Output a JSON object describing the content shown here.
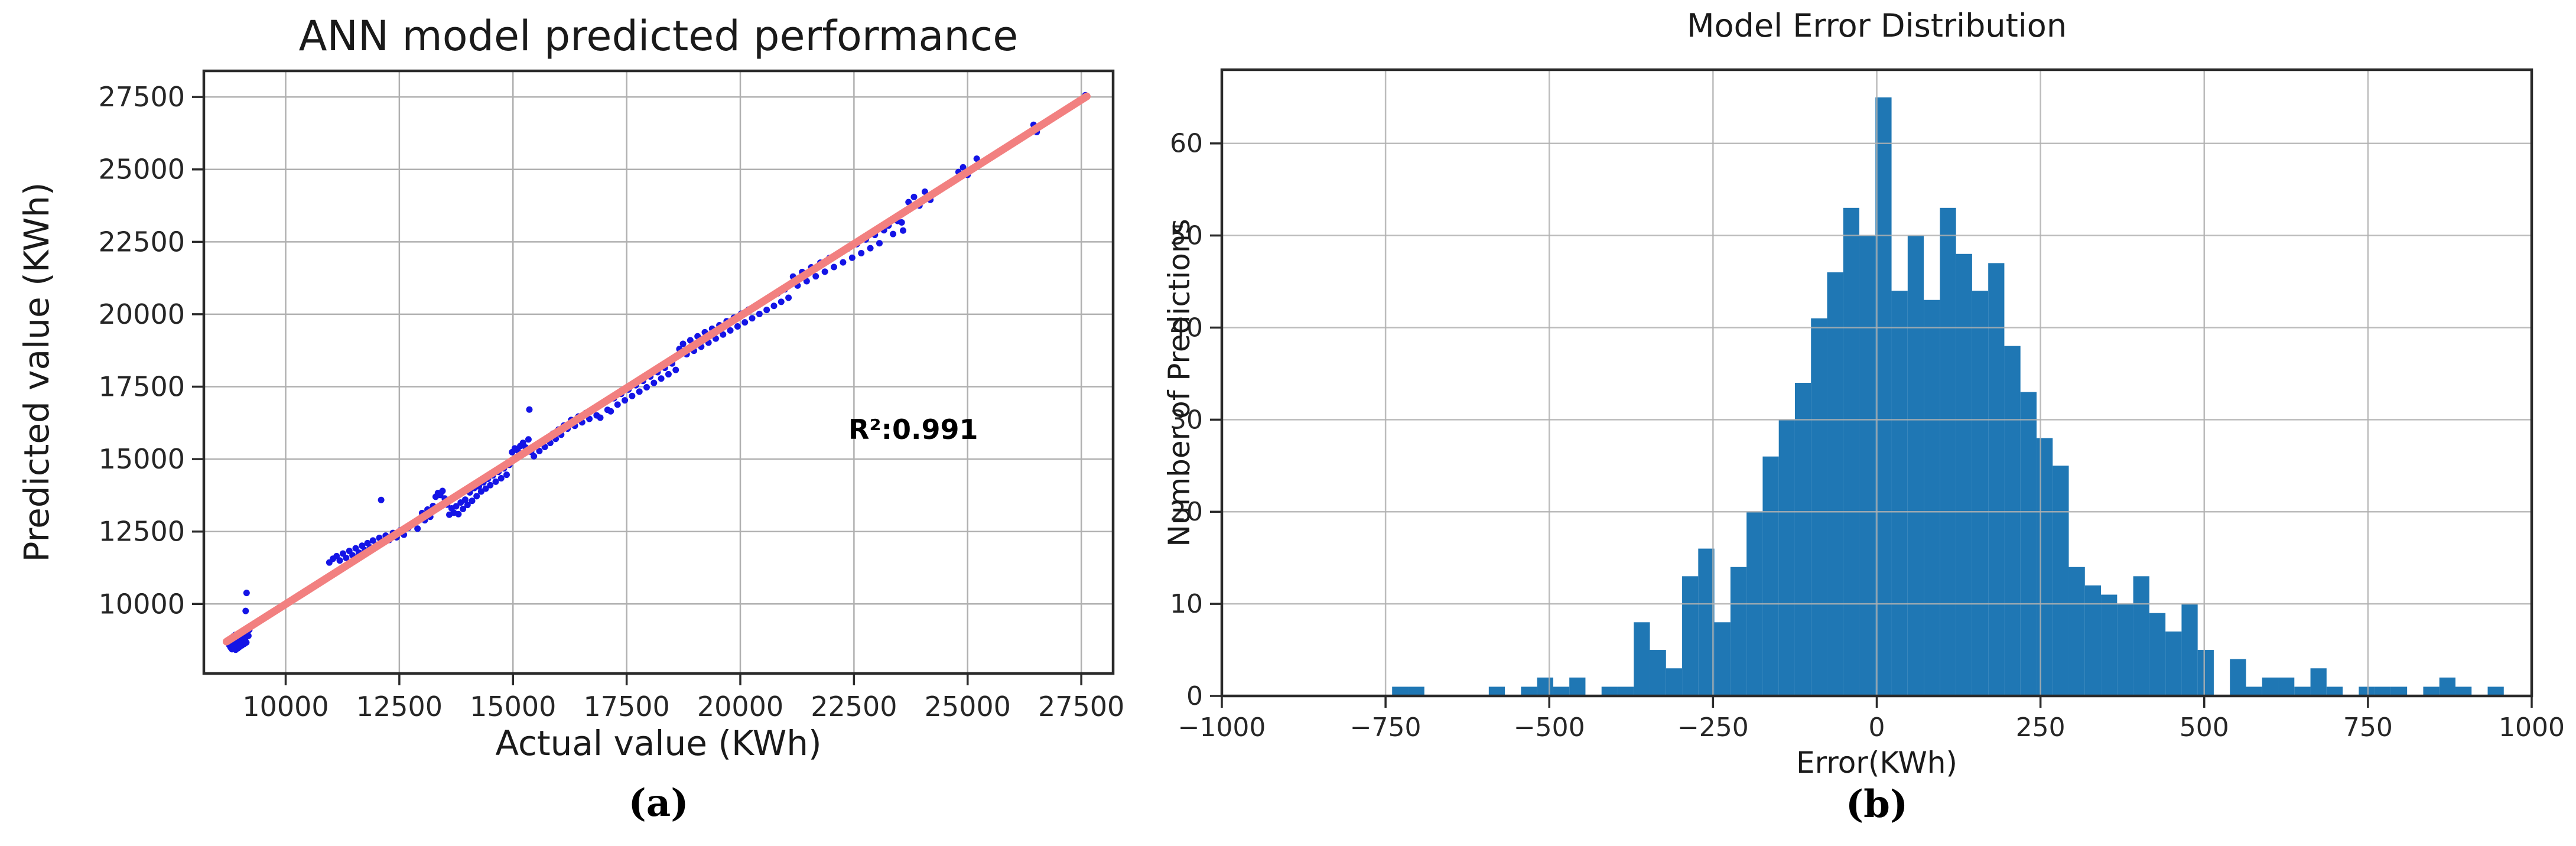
{
  "page": {
    "background": "#ffffff"
  },
  "captions": {
    "a": "(a)",
    "b": "(b)"
  },
  "chart_data": [
    {
      "type": "scatter",
      "panel": "a",
      "title": "ANN model predicted performance",
      "xlabel": "Actual value (KWh)",
      "ylabel": "Predicted value (KWh)",
      "annotation": "R²:0.991",
      "xlim": [
        8200,
        28200
      ],
      "ylim": [
        7600,
        28400
      ],
      "xticks": [
        10000,
        12500,
        15000,
        17500,
        20000,
        22500,
        25000,
        27500
      ],
      "xtick_labels": [
        "10000",
        "12500",
        "15000",
        "17500",
        "20000",
        "22500",
        "25000",
        "27500"
      ],
      "yticks": [
        10000,
        12500,
        15000,
        17500,
        20000,
        22500,
        25000,
        27500
      ],
      "ytick_labels": [
        "10000",
        "12500",
        "15000",
        "17500",
        "20000",
        "22500",
        "25000",
        "27500"
      ],
      "grid": true,
      "legend_position": "none",
      "point_color": "#1414e6",
      "line_color": "#f28080",
      "grid_color": "#b0b0b0",
      "fit_line": {
        "x": [
          8700,
          27620
        ],
        "y": [
          8700,
          27520
        ]
      },
      "points": [
        [
          8760,
          8580
        ],
        [
          8775,
          8700
        ],
        [
          8790,
          8500
        ],
        [
          8800,
          8810
        ],
        [
          8810,
          8620
        ],
        [
          8820,
          8440
        ],
        [
          8830,
          8750
        ],
        [
          8840,
          8560
        ],
        [
          8850,
          8880
        ],
        [
          8855,
          8680
        ],
        [
          8865,
          8490
        ],
        [
          8875,
          8800
        ],
        [
          8885,
          8600
        ],
        [
          8890,
          8930
        ],
        [
          8900,
          8420
        ],
        [
          8905,
          8730
        ],
        [
          8915,
          8540
        ],
        [
          8925,
          8860
        ],
        [
          8935,
          8650
        ],
        [
          8945,
          8470
        ],
        [
          8950,
          8780
        ],
        [
          8960,
          8590
        ],
        [
          8970,
          8900
        ],
        [
          8980,
          8710
        ],
        [
          8985,
          8520
        ],
        [
          8995,
          8830
        ],
        [
          9005,
          8640
        ],
        [
          9015,
          8950
        ],
        [
          9025,
          8760
        ],
        [
          9035,
          8570
        ],
        [
          9045,
          8870
        ],
        [
          9055,
          8690
        ],
        [
          9065,
          9000
        ],
        [
          9075,
          8810
        ],
        [
          9085,
          8620
        ],
        [
          9095,
          8920
        ],
        [
          9105,
          8740
        ],
        [
          9115,
          9040
        ],
        [
          9125,
          8850
        ],
        [
          9135,
          8670
        ],
        [
          9150,
          8970
        ],
        [
          9165,
          9090
        ],
        [
          9180,
          8900
        ],
        [
          9200,
          9110
        ],
        [
          9230,
          9240
        ],
        [
          9120,
          9760
        ],
        [
          9140,
          10380
        ],
        [
          10960,
          11430
        ],
        [
          11040,
          11560
        ],
        [
          11120,
          11650
        ],
        [
          11190,
          11500
        ],
        [
          11260,
          11740
        ],
        [
          11330,
          11590
        ],
        [
          11400,
          11830
        ],
        [
          11470,
          11680
        ],
        [
          11540,
          11920
        ],
        [
          11610,
          11770
        ],
        [
          11680,
          12010
        ],
        [
          11740,
          11860
        ],
        [
          11800,
          12100
        ],
        [
          11860,
          11950
        ],
        [
          11920,
          12190
        ],
        [
          11990,
          12040
        ],
        [
          12060,
          12280
        ],
        [
          12130,
          12120
        ],
        [
          12200,
          12360
        ],
        [
          12100,
          13590
        ],
        [
          12280,
          12210
        ],
        [
          12360,
          12450
        ],
        [
          12440,
          12300
        ],
        [
          12520,
          12540
        ],
        [
          12600,
          12390
        ],
        [
          12700,
          12630
        ],
        [
          12800,
          12760
        ],
        [
          12900,
          12600
        ],
        [
          13000,
          13140
        ],
        [
          13060,
          12890
        ],
        [
          13120,
          13260
        ],
        [
          13180,
          13010
        ],
        [
          13240,
          13380
        ],
        [
          13300,
          13700
        ],
        [
          13350,
          13830
        ],
        [
          13400,
          13760
        ],
        [
          13450,
          13900
        ],
        [
          13500,
          13640
        ],
        [
          13550,
          13430
        ],
        [
          13600,
          13080
        ],
        [
          13650,
          13300
        ],
        [
          13700,
          13150
        ],
        [
          13750,
          13370
        ],
        [
          13800,
          13100
        ],
        [
          13850,
          13500
        ],
        [
          13900,
          13280
        ],
        [
          13950,
          13600
        ],
        [
          14000,
          13420
        ],
        [
          14050,
          13850
        ],
        [
          14100,
          13560
        ],
        [
          14150,
          14000
        ],
        [
          14200,
          13720
        ],
        [
          14250,
          14060
        ],
        [
          14300,
          13880
        ],
        [
          14350,
          14200
        ],
        [
          14400,
          13980
        ],
        [
          14450,
          14320
        ],
        [
          14500,
          14100
        ],
        [
          14560,
          14440
        ],
        [
          14620,
          14220
        ],
        [
          14680,
          14560
        ],
        [
          14740,
          14340
        ],
        [
          14800,
          14680
        ],
        [
          14860,
          14460
        ],
        [
          14920,
          14800
        ],
        [
          14980,
          15240
        ],
        [
          15040,
          15370
        ],
        [
          15100,
          15300
        ],
        [
          15160,
          15450
        ],
        [
          15220,
          15560
        ],
        [
          15280,
          15400
        ],
        [
          15340,
          15680
        ],
        [
          15360,
          16710
        ],
        [
          15400,
          15250
        ],
        [
          15460,
          15100
        ],
        [
          15520,
          15470
        ],
        [
          15580,
          15280
        ],
        [
          15640,
          15600
        ],
        [
          15700,
          15420
        ],
        [
          15760,
          15740
        ],
        [
          15820,
          15560
        ],
        [
          15880,
          15880
        ],
        [
          15940,
          15700
        ],
        [
          16000,
          16020
        ],
        [
          16060,
          15840
        ],
        [
          16120,
          16160
        ],
        [
          16200,
          16050
        ],
        [
          16280,
          16350
        ],
        [
          16360,
          16150
        ],
        [
          16440,
          16470
        ],
        [
          16520,
          16270
        ],
        [
          16600,
          16590
        ],
        [
          16680,
          16390
        ],
        [
          16760,
          16710
        ],
        [
          16840,
          16510
        ],
        [
          16920,
          16430
        ],
        [
          17000,
          16950
        ],
        [
          17080,
          16700
        ],
        [
          17150,
          16650
        ],
        [
          17220,
          17100
        ],
        [
          17300,
          16880
        ],
        [
          17380,
          17250
        ],
        [
          17460,
          17030
        ],
        [
          17540,
          17400
        ],
        [
          17620,
          17180
        ],
        [
          17700,
          17550
        ],
        [
          17780,
          17330
        ],
        [
          17860,
          17700
        ],
        [
          17940,
          17480
        ],
        [
          18020,
          17850
        ],
        [
          18100,
          17630
        ],
        [
          18180,
          18000
        ],
        [
          18260,
          17780
        ],
        [
          18340,
          18150
        ],
        [
          18420,
          17930
        ],
        [
          18500,
          18300
        ],
        [
          18580,
          18080
        ],
        [
          18660,
          18800
        ],
        [
          18740,
          18980
        ],
        [
          18820,
          18620
        ],
        [
          18900,
          19100
        ],
        [
          18980,
          18740
        ],
        [
          19060,
          19240
        ],
        [
          19140,
          18880
        ],
        [
          19220,
          19380
        ],
        [
          19300,
          19020
        ],
        [
          19380,
          19500
        ],
        [
          19460,
          19160
        ],
        [
          19540,
          19620
        ],
        [
          19620,
          19300
        ],
        [
          19700,
          19760
        ],
        [
          19780,
          19440
        ],
        [
          19860,
          19880
        ],
        [
          19940,
          19580
        ],
        [
          20020,
          20020
        ],
        [
          20100,
          19720
        ],
        [
          20180,
          20160
        ],
        [
          20260,
          19860
        ],
        [
          20340,
          20300
        ],
        [
          20420,
          20010
        ],
        [
          20500,
          20440
        ],
        [
          20580,
          20150
        ],
        [
          20660,
          20580
        ],
        [
          20740,
          20290
        ],
        [
          20820,
          20720
        ],
        [
          20900,
          20430
        ],
        [
          20980,
          20860
        ],
        [
          21060,
          20570
        ],
        [
          21160,
          21300
        ],
        [
          21260,
          20990
        ],
        [
          21360,
          21460
        ],
        [
          21460,
          21140
        ],
        [
          21560,
          21620
        ],
        [
          21660,
          21310
        ],
        [
          21760,
          21780
        ],
        [
          21860,
          21470
        ],
        [
          21960,
          21940
        ],
        [
          22060,
          21630
        ],
        [
          22160,
          22100
        ],
        [
          22260,
          21790
        ],
        [
          22360,
          22260
        ],
        [
          22460,
          21950
        ],
        [
          22560,
          22420
        ],
        [
          22660,
          22110
        ],
        [
          22760,
          22580
        ],
        [
          22860,
          22280
        ],
        [
          22960,
          22740
        ],
        [
          23060,
          22450
        ],
        [
          23160,
          22900
        ],
        [
          23260,
          23060
        ],
        [
          23360,
          22770
        ],
        [
          23460,
          23220
        ],
        [
          23550,
          23170
        ],
        [
          23580,
          22890
        ],
        [
          23700,
          23870
        ],
        [
          23820,
          24050
        ],
        [
          23940,
          23750
        ],
        [
          24060,
          24230
        ],
        [
          24180,
          23950
        ],
        [
          24800,
          24910
        ],
        [
          24900,
          25070
        ],
        [
          25000,
          24810
        ],
        [
          25100,
          25000
        ],
        [
          25200,
          25370
        ],
        [
          26450,
          26540
        ],
        [
          26520,
          26290
        ],
        [
          27590,
          27560
        ]
      ]
    },
    {
      "type": "bar",
      "panel": "b",
      "title": "Model Error Distribution",
      "xlabel": "Error(KWh)",
      "ylabel": "Number of Predictions",
      "xlim": [
        -1000,
        1000
      ],
      "ylim": [
        0,
        68
      ],
      "xticks": [
        -1000,
        -750,
        -500,
        -250,
        0,
        250,
        500,
        750,
        1000
      ],
      "xtick_labels": [
        "−1000",
        "−750",
        "−500",
        "−250",
        "0",
        "250",
        "500",
        "750",
        "1000"
      ],
      "yticks": [
        0,
        10,
        20,
        30,
        40,
        50,
        60
      ],
      "ytick_labels": [
        "0",
        "10",
        "20",
        "30",
        "40",
        "50",
        "60"
      ],
      "grid": true,
      "legend_position": "none",
      "bar_color": "#1f77b4",
      "grid_color": "#b0b0b0",
      "bin_start": -740,
      "bin_width": 24.6,
      "counts": [
        1,
        1,
        0,
        0,
        0,
        0,
        1,
        0,
        1,
        2,
        1,
        2,
        0,
        1,
        1,
        8,
        5,
        3,
        13,
        16,
        8,
        14,
        20,
        26,
        30,
        34,
        41,
        46,
        53,
        50,
        65,
        44,
        50,
        43,
        53,
        48,
        44,
        47,
        38,
        33,
        28,
        25,
        14,
        12,
        11,
        10,
        13,
        9,
        7,
        10,
        5,
        0,
        4,
        1,
        2,
        2,
        1,
        3,
        1,
        0,
        1,
        1,
        1,
        0,
        1,
        2,
        1,
        0,
        1
      ]
    }
  ]
}
